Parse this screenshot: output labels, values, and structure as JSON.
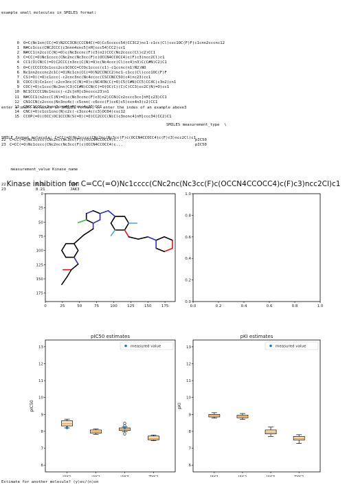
{
  "header_line": "example small molecules in SMILES format:",
  "examples": [
    {
      "i": "0",
      "s": "O=C(Nc1cn(CC(=O)N2CC3CN(CCCN4C(=O)Cc5ccccc54)CC3C2)nc1-c1cc(Cl)ccc1OC(F)F)c1cnn2cccnc12"
    },
    {
      "i": "1",
      "s": "N#Cc1ccc(CNC2CCC(c3nnn4cnc5[nH]ccc54)CC2)cc1"
    },
    {
      "i": "2",
      "s": "N#CC1(n2cc(C(N)=O)c(Nc3ccnc(F)c3)n2)CCC(Nc2cccc(Cl)c2)CC1"
    },
    {
      "i": "3",
      "s": "C=CC(=O)Nc1cccc(CNc2nc(Nc3cc(F)c(OCCN4CCOCC4)c(F)c3)ncc2Cl)c1"
    },
    {
      "i": "4",
      "s": "CC1(O)CN(C(=O)C2CCC(n3cc(C(N)=O)c(Nc4ccc(Cl)cc4)n3)C(C#N)C2)C1"
    },
    {
      "i": "5",
      "s": "O=C(CCCCCOc1ccc2cc1COCC=CCOc1cccc(c1)-c1ccnc(n1)N2)NO"
    },
    {
      "i": "6",
      "s": "Nc1nn2cccnc2c1C(=O)Nc1cn(CC(=O)N2CCNCC2)nc1-c1cc(Cl)ccc1OC(F)F"
    },
    {
      "i": "7",
      "s": "CS(=O)(=O)c1ccc(-c2cnc3nc(Nc4cccc(CSCCNCC5O)c4)nc23)cc1"
    },
    {
      "i": "8",
      "s": "COCC(O)Cn1cc(-c2cn3nc(C(N)=O)c(NC4CN(C(=O)C5(C#N)CC5)CC4C)c3n2)cn1"
    },
    {
      "i": "9",
      "s": "COC(=O)c1ccc(Nc2nn(C3(CC#N)CCN(C(=O)OC(C)(C)C)CC3)cc2C(N)=O)cc1"
    },
    {
      "i": "10",
      "s": "NC1CCCCC1Nc1nccc(-c2c[nH]c3ncccc23)n1"
    },
    {
      "i": "11",
      "s": "N#CCC1(n2cc(C(N)=O)c(Nc3ccnc(F)c3)n2)CCN(Cc2cccc3cc[nH]c23)CC1"
    },
    {
      "i": "12",
      "s": "CN1CCN(c2cccc(Nc3nc4c(-c5cnn(-c6ccc(F)cc6)c5)ccn4n3)c2)CC1"
    },
    {
      "i": "13",
      "s": "CNCC1CCC(c2nnn3cnc4[nH]ccc4c23)CC1"
    },
    {
      "i": "14",
      "s": "CNC(=O)c1cc1cnc(N)c2c(-c3ccc4c(c3)OC04)csc12"
    },
    {
      "i": "15",
      "s": "CCOP(=O)(OCC)OC1CCCN(S(=O)(=O)CC2CCC(N(C)c3ncnc4[nH]ccc34)CC2)C1"
    }
  ],
  "prompt_line": "enter a small molecule in SMILES format, or enter the index of an example above3",
  "smile_line": "SMILE format molecule: C=CC(=O)Nc1cccc(CNc2nc(Nc3cc(F)c(OCCN4CCOCC4)c(F)c3)ncc2Cl)c1",
  "df1": {
    "header_col": "SMILES measurement_type  \\",
    "rows": [
      {
        "i": "22",
        "s": "C=CC(=O)Nc1cccc(CNc2nc(Nc3cc(F)c(OCCN4CCOCC4)c...",
        "t": "pIC50"
      },
      {
        "i": "23",
        "s": "C=CC(=O)Nc1cccc(CNc2nc(Nc3cc(F)c(OCCN4CCOCC4)c...",
        "t": "pIC50"
      }
    ]
  },
  "df2": {
    "header": "    measurement_value Kinase_name",
    "rows": [
      {
        "i": "22",
        "v": "8.21",
        "k": "JAK1"
      },
      {
        "i": "23",
        "v": "8.21",
        "k": "JAK3"
      }
    ]
  },
  "figure_title": "Kinase inhibition for C=CC(=O)Nc1cccc(CNc2nc(Nc3cc(F)c(OCCN4CCOCC4)c(F)c3)ncc2Cl)c1",
  "bottom_prompt": "Estimate for another molecule? (y)es/(n)on",
  "colors": {
    "box_face": "#fce5c9",
    "median": "#e8891c",
    "point": "#1f77b4",
    "N": "#2b2bd9",
    "O": "#e11",
    "F": "#5ad",
    "Cl": "#2c2"
  },
  "chart_data": [
    {
      "type": "image",
      "xlim": [
        0,
        190
      ],
      "ylim": [
        190,
        0
      ],
      "xticks": [
        0,
        25,
        50,
        75,
        100,
        125,
        150,
        175
      ],
      "yticks": [
        0,
        25,
        50,
        75,
        100,
        125,
        150,
        175
      ]
    },
    {
      "type": "empty",
      "xlim": [
        0,
        1
      ],
      "ylim": [
        0,
        1
      ],
      "xticks": [
        "0.0",
        "0.2",
        "0.4",
        "0.6",
        "0.8",
        "1.0"
      ],
      "yticks": [
        "0.0",
        "0.2",
        "0.4",
        "0.6",
        "0.8",
        "1.0"
      ]
    },
    {
      "type": "box",
      "title": "pIC50 estimates",
      "ylabel": "pIC50",
      "ylim": [
        5.6,
        13.4
      ],
      "yticks": [
        6,
        7,
        8,
        9,
        10,
        11,
        12,
        13
      ],
      "categories": [
        "JAK1",
        "JAK2",
        "JAK3",
        "TYK2"
      ],
      "boxes": [
        {
          "whislo": 8.2,
          "q1": 8.32,
          "med": 8.45,
          "q3": 8.62,
          "whishi": 8.72,
          "fliers": []
        },
        {
          "whislo": 7.82,
          "q1": 7.9,
          "med": 7.97,
          "q3": 8.08,
          "whishi": 8.14,
          "fliers": []
        },
        {
          "whislo": 7.98,
          "q1": 8.05,
          "med": 8.12,
          "q3": 8.2,
          "whishi": 8.27,
          "fliers": [
            8.47,
            8.33,
            7.85
          ]
        },
        {
          "whislo": 7.45,
          "q1": 7.5,
          "med": 7.58,
          "q3": 7.72,
          "whishi": 7.78,
          "fliers": []
        }
      ],
      "measured": [
        {
          "cat": "JAK1",
          "value": 8.21
        },
        {
          "cat": "JAK3",
          "value": 8.21
        }
      ],
      "legend": "measured value",
      "legend_loc": "upper right"
    },
    {
      "type": "box",
      "title": "pKI estimates",
      "ylabel": "pKI",
      "ylim": [
        5.6,
        13.4
      ],
      "yticks": [
        6,
        7,
        8,
        9,
        10,
        11,
        12,
        13
      ],
      "categories": [
        "JAK1",
        "JAK2",
        "JAK3",
        "TYK2"
      ],
      "boxes": [
        {
          "whislo": 8.78,
          "q1": 8.85,
          "med": 8.93,
          "q3": 9.0,
          "whishi": 9.1,
          "fliers": []
        },
        {
          "whislo": 8.7,
          "q1": 8.8,
          "med": 8.87,
          "q3": 8.95,
          "whishi": 9.05,
          "fliers": []
        },
        {
          "whislo": 7.7,
          "q1": 7.85,
          "med": 7.95,
          "q3": 8.08,
          "whishi": 8.25,
          "fliers": []
        },
        {
          "whislo": 7.28,
          "q1": 7.48,
          "med": 7.58,
          "q3": 7.7,
          "whishi": 7.8,
          "fliers": []
        }
      ],
      "measured": [],
      "legend": "measured value",
      "legend_loc": "upper right"
    }
  ]
}
